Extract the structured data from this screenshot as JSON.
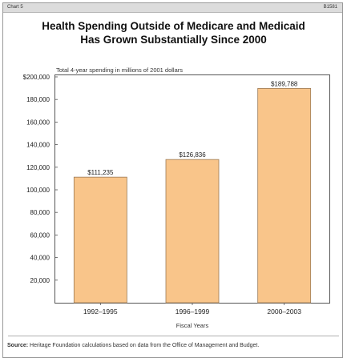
{
  "header": {
    "chart_number": "Chart 5",
    "code": "B1581"
  },
  "title_lines": [
    "Health Spending Outside of Medicare and Medicaid",
    "Has Grown Substantially Since 2000"
  ],
  "source": {
    "label": "Source:",
    "text": "Heritage Foundation calculations based on data from the Office of Management and Budget."
  },
  "colors": {
    "bar_fill": "#f9c58a",
    "bar_stroke": "#9c7a55",
    "axis": "#555555"
  },
  "chart_data": {
    "type": "bar",
    "subtitle": "Total 4-year spending in millions of 2001 dollars",
    "categories": [
      "1992–1995",
      "1996–1999",
      "2000–2003"
    ],
    "values": [
      111235,
      126836,
      189788
    ],
    "value_labels": [
      "$111,235",
      "$126,836",
      "$189,788"
    ],
    "xlabel": "Fiscal Years",
    "ylabel": "",
    "ylim": [
      0,
      200000
    ],
    "y_ticks": [
      20000,
      40000,
      60000,
      80000,
      100000,
      120000,
      140000,
      160000,
      180000,
      200000
    ],
    "y_tick_labels": [
      "20,000",
      "40,000",
      "60,000",
      "80,000",
      "100,000",
      "120,000",
      "140,000",
      "160,000",
      "180,000",
      "$200,000"
    ],
    "grid": false,
    "legend": "none"
  }
}
